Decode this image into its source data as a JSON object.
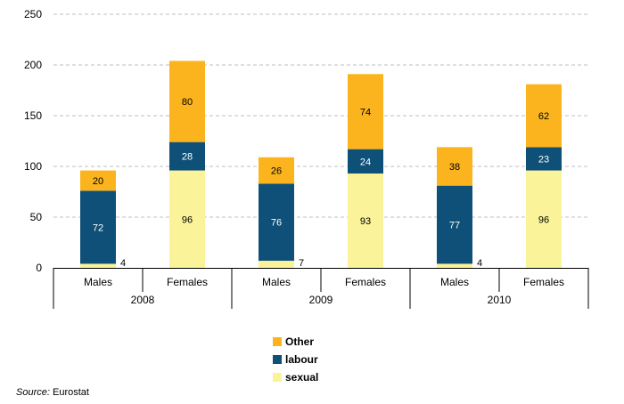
{
  "chart_data": {
    "type": "bar",
    "stacked": true,
    "title": "",
    "xlabel": "",
    "ylabel": "",
    "ylim": [
      0,
      250
    ],
    "yticks": [
      0,
      50,
      100,
      150,
      200,
      250
    ],
    "grid": true,
    "legend_position": "bottom",
    "groups": [
      "2008",
      "2009",
      "2010"
    ],
    "categories": [
      "Males",
      "Females",
      "Males",
      "Females",
      "Males",
      "Females"
    ],
    "series": [
      {
        "name": "sexual",
        "color": "#fbf39a",
        "values": [
          4,
          96,
          7,
          93,
          4,
          96
        ]
      },
      {
        "name": "labour",
        "color": "#0e5078",
        "values": [
          72,
          28,
          76,
          24,
          77,
          23
        ]
      },
      {
        "name": "Other",
        "color": "#fbb41d",
        "values": [
          20,
          80,
          26,
          74,
          38,
          62
        ]
      }
    ]
  },
  "legend_order": [
    "Other",
    "labour",
    "sexual"
  ],
  "source": {
    "label": "Source:",
    "text": "Eurostat"
  }
}
